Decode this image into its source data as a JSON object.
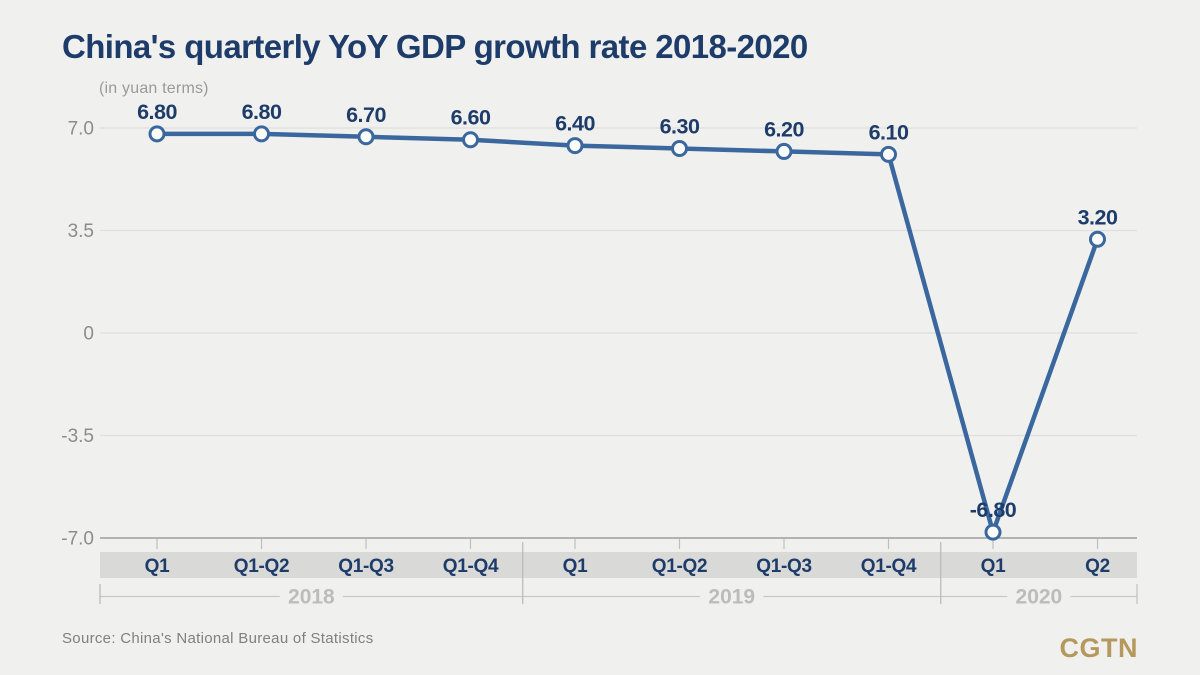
{
  "title": "China's quarterly YoY GDP growth rate 2018-2020",
  "subtitle": "(in yuan terms)",
  "source": "Source: China's National Bureau of Statistics",
  "logo": "CGTN",
  "colors": {
    "background": "#f0f0ef",
    "navy": "#1e3c69",
    "line_blue": "#3a689e",
    "marker_fill": "#fbfbfa",
    "axis_band_gray": "#d9d9d8",
    "year_label_gray": "#bcbcbc",
    "tick_label_gray": "#8c8c8c",
    "gridline_gray": "#dedede",
    "axis_line_gray": "#9e9e9e",
    "logo_gold": "#b5995c"
  },
  "chart_data": {
    "type": "line",
    "title": "China's quarterly YoY GDP growth rate 2018-2020",
    "subtitle": "(in yuan terms)",
    "categories": [
      "Q1",
      "Q1-Q2",
      "Q1-Q3",
      "Q1-Q4",
      "Q1",
      "Q1-Q2",
      "Q1-Q3",
      "Q1-Q4",
      "Q1",
      "Q2"
    ],
    "year_groups": [
      {
        "label": "2018",
        "span": 4
      },
      {
        "label": "2019",
        "span": 4
      },
      {
        "label": "2020",
        "span": 2
      }
    ],
    "values": [
      6.8,
      6.8,
      6.7,
      6.6,
      6.4,
      6.3,
      6.2,
      6.1,
      -6.8,
      3.2
    ],
    "value_labels": [
      "6.80",
      "6.80",
      "6.70",
      "6.60",
      "6.40",
      "6.30",
      "6.20",
      "6.10",
      "-6.80",
      "3.20"
    ],
    "y_ticks": [
      7.0,
      3.5,
      0,
      -3.5,
      -7.0
    ],
    "y_tick_labels": [
      "7.0",
      "3.5",
      "0",
      "-3.5",
      "-7.0"
    ],
    "ylim": [
      -7.0,
      7.0
    ],
    "xlabel": "",
    "ylabel": "",
    "grid": true,
    "legend_position": "none",
    "source": "Source: China's National Bureau of Statistics"
  }
}
